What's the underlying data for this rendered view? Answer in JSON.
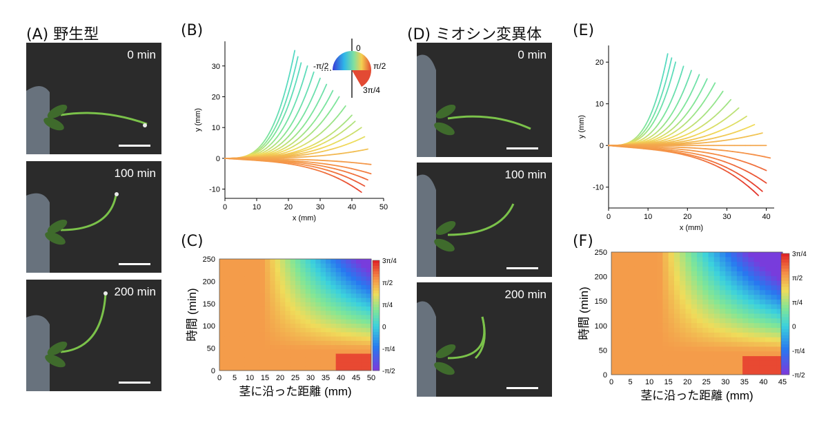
{
  "panels": {
    "A": {
      "label": "(A) 野生型",
      "times": [
        "0 min",
        "100 min",
        "200 min"
      ]
    },
    "B": {
      "label": "(B)"
    },
    "C": {
      "label": "(C)"
    },
    "D": {
      "label": "(D) ミオシン変異体",
      "times": [
        "0 min",
        "100 min",
        "200 min"
      ]
    },
    "E": {
      "label": "(E)"
    },
    "F": {
      "label": "(F)"
    }
  },
  "angle_legend": {
    "top": "0",
    "left": "-π/2",
    "right": "π/2",
    "bottom": "3π/4"
  },
  "colors": {
    "photo_bg": "#2b2b2b",
    "plant": "#7bc24a",
    "leaf": "#3f6b2c",
    "mesh": "#6f7a86"
  },
  "chart_data": [
    {
      "id": "B",
      "type": "line",
      "xlabel": "x (mm)",
      "ylabel": "y (mm)",
      "xlim": [
        0,
        50
      ],
      "ylim": [
        -13,
        38
      ],
      "xticks": [
        "0",
        "10",
        "20",
        "30",
        "40",
        "50"
      ],
      "yticks": [
        "-10",
        "0",
        "10",
        "20",
        "30"
      ],
      "note": "stem shapes over time, colored by tangent angle",
      "curves_tip": [
        [
          22,
          35
        ],
        [
          23,
          33
        ],
        [
          24,
          31
        ],
        [
          26,
          30
        ],
        [
          28,
          28
        ],
        [
          30,
          26
        ],
        [
          32,
          24
        ],
        [
          34,
          22
        ],
        [
          36,
          20
        ],
        [
          38,
          17
        ],
        [
          40,
          14
        ],
        [
          41,
          12
        ],
        [
          43,
          10
        ],
        [
          44,
          7
        ],
        [
          45,
          3
        ],
        [
          46,
          -2
        ],
        [
          46,
          -5
        ],
        [
          45,
          -7
        ],
        [
          44,
          -9
        ],
        [
          43,
          -11
        ]
      ]
    },
    {
      "id": "C",
      "type": "heatmap",
      "xlabel": "茎に沿った距離 (mm)",
      "ylabel": "時間 (min)",
      "xlim": [
        0,
        50
      ],
      "ylim": [
        0,
        250
      ],
      "xticks": [
        "0",
        "5",
        "10",
        "15",
        "20",
        "25",
        "30",
        "35",
        "40",
        "45",
        "50"
      ],
      "yticks": [
        "0",
        "50",
        "100",
        "150",
        "200",
        "250"
      ],
      "colorbar": [
        "3π/4",
        "π/2",
        "π/4",
        "0",
        "-π/4",
        "-π/2"
      ]
    },
    {
      "id": "E",
      "type": "line",
      "xlabel": "x (mm)",
      "ylabel": "y (mm)",
      "xlim": [
        0,
        42
      ],
      "ylim": [
        -15,
        24
      ],
      "xticks": [
        "0",
        "10",
        "20",
        "30",
        "40"
      ],
      "yticks": [
        "-10",
        "0",
        "10",
        "20"
      ],
      "curves_tip": [
        [
          15,
          22
        ],
        [
          16,
          21
        ],
        [
          17,
          20
        ],
        [
          19,
          19
        ],
        [
          21,
          18
        ],
        [
          23,
          17
        ],
        [
          25,
          16
        ],
        [
          27,
          15
        ],
        [
          29,
          13
        ],
        [
          31,
          11
        ],
        [
          33,
          9
        ],
        [
          35,
          7
        ],
        [
          37,
          5
        ],
        [
          39,
          3
        ],
        [
          40,
          0
        ],
        [
          41,
          -3
        ],
        [
          40,
          -6
        ],
        [
          40,
          -9
        ],
        [
          39,
          -11
        ],
        [
          38,
          -12
        ]
      ]
    },
    {
      "id": "F",
      "type": "heatmap",
      "xlabel": "茎に沿った距離 (mm)",
      "ylabel": "時間 (min)",
      "xlim": [
        0,
        45
      ],
      "ylim": [
        0,
        250
      ],
      "xticks": [
        "0",
        "5",
        "10",
        "15",
        "20",
        "25",
        "30",
        "35",
        "40",
        "45"
      ],
      "yticks": [
        "0",
        "50",
        "100",
        "150",
        "200",
        "250"
      ],
      "colorbar": [
        "3π/4",
        "π/2",
        "π/4",
        "0",
        "-π/4",
        "-π/2"
      ]
    }
  ]
}
